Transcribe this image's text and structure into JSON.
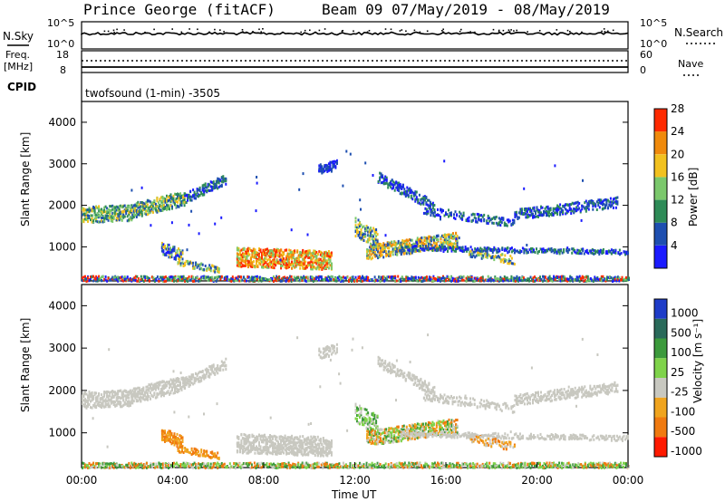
{
  "header": {
    "station": "Prince George (fitACF)",
    "beam_dates": "Beam 09 07/May/2019 - 08/May/2019"
  },
  "top_panels": {
    "nsky_label": "N.Sky",
    "nsky_ticks": [
      "10^5",
      "10^0"
    ],
    "nsearch_label": "N.Search",
    "nsearch_ticks": [
      "10^5",
      "10^0"
    ],
    "freq_label_1": "Freq.",
    "freq_label_2": "[MHz]",
    "freq_ticks": [
      "18",
      "8"
    ],
    "nave_label": "Nave",
    "nave_ticks": [
      "60",
      "0"
    ],
    "cpid_label": "CPID",
    "cpid_text": "twofsound (1-min) -3505"
  },
  "chart_data": [
    {
      "type": "heatmap",
      "title": "",
      "ylabel": "Slant Range [km]",
      "ylim": [
        180,
        4500
      ],
      "y_ticks": [
        "1000",
        "2000",
        "3000",
        "4000"
      ],
      "colorbar_label": "Power [dB]",
      "colorbar_ticks": [
        "4",
        "8",
        "12",
        "16",
        "20",
        "24",
        "28"
      ],
      "colors": [
        "#1b1bff",
        "#1e4fb0",
        "#2e8b57",
        "#7bc86c",
        "#f2c11f",
        "#f08a0c",
        "#ff2a00"
      ],
      "description_bands": [
        {
          "x_start": "00:00",
          "x_end": "06:30",
          "range_km": [
            1600,
            2700
          ],
          "level": "medium"
        },
        {
          "x_start": "07:00",
          "x_end": "11:00",
          "range_km": [
            500,
            1200
          ],
          "level": "high"
        },
        {
          "x_start": "12:00",
          "x_end": "24:00",
          "range_km": [
            700,
            1500
          ],
          "level": "medium"
        }
      ]
    },
    {
      "type": "heatmap",
      "title": "",
      "xlabel": "Time UT",
      "ylabel": "Slant Range [km]",
      "ylim": [
        180,
        4500
      ],
      "x_ticks": [
        "00:00",
        "04:00",
        "08:00",
        "12:00",
        "16:00",
        "20:00",
        "00:00"
      ],
      "y_ticks": [
        "1000",
        "2000",
        "3000",
        "4000"
      ],
      "colorbar_label": "Velocity [m s⁻¹]",
      "colorbar_ticks": [
        "1000",
        "500",
        "100",
        "25",
        "-25",
        "-100",
        "-500",
        "-1000"
      ],
      "colors": [
        "#1e3cc8",
        "#2a6a5a",
        "#3c9a3c",
        "#7fd34a",
        "#c8c8c0",
        "#f0a41e",
        "#f07a10",
        "#ff1a00"
      ]
    }
  ]
}
